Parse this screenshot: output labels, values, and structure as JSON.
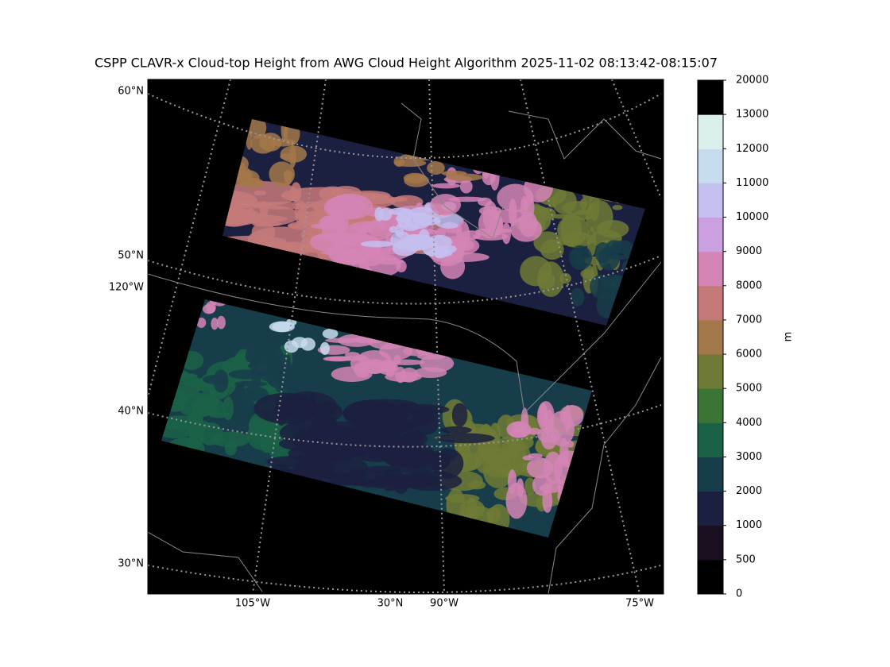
{
  "title": "CSPP CLAVR-x Cloud-top Height from AWG Cloud Height Algorithm 2025-11-02 08:13:42-08:15:07",
  "lat_labels": [
    "60°N",
    "50°N",
    "120°W",
    "40°N",
    "30°N"
  ],
  "lon_labels": [
    "105°W",
    "30°N",
    "90°W",
    "75°W"
  ],
  "colorbar": {
    "label": "m",
    "ticks": [
      0,
      500,
      1000,
      2000,
      3000,
      4000,
      5000,
      6000,
      7000,
      8000,
      9000,
      10000,
      11000,
      12000,
      13000,
      20000
    ],
    "colors": [
      "#000000",
      "#1a0f1f",
      "#1c2040",
      "#173d4a",
      "#1b6148",
      "#3b7535",
      "#6e7a35",
      "#a3784a",
      "#c57a7a",
      "#d485b5",
      "#caa0e0",
      "#c4c0f0",
      "#c8dcf0",
      "#daf0ec",
      "#ffffff"
    ]
  }
}
